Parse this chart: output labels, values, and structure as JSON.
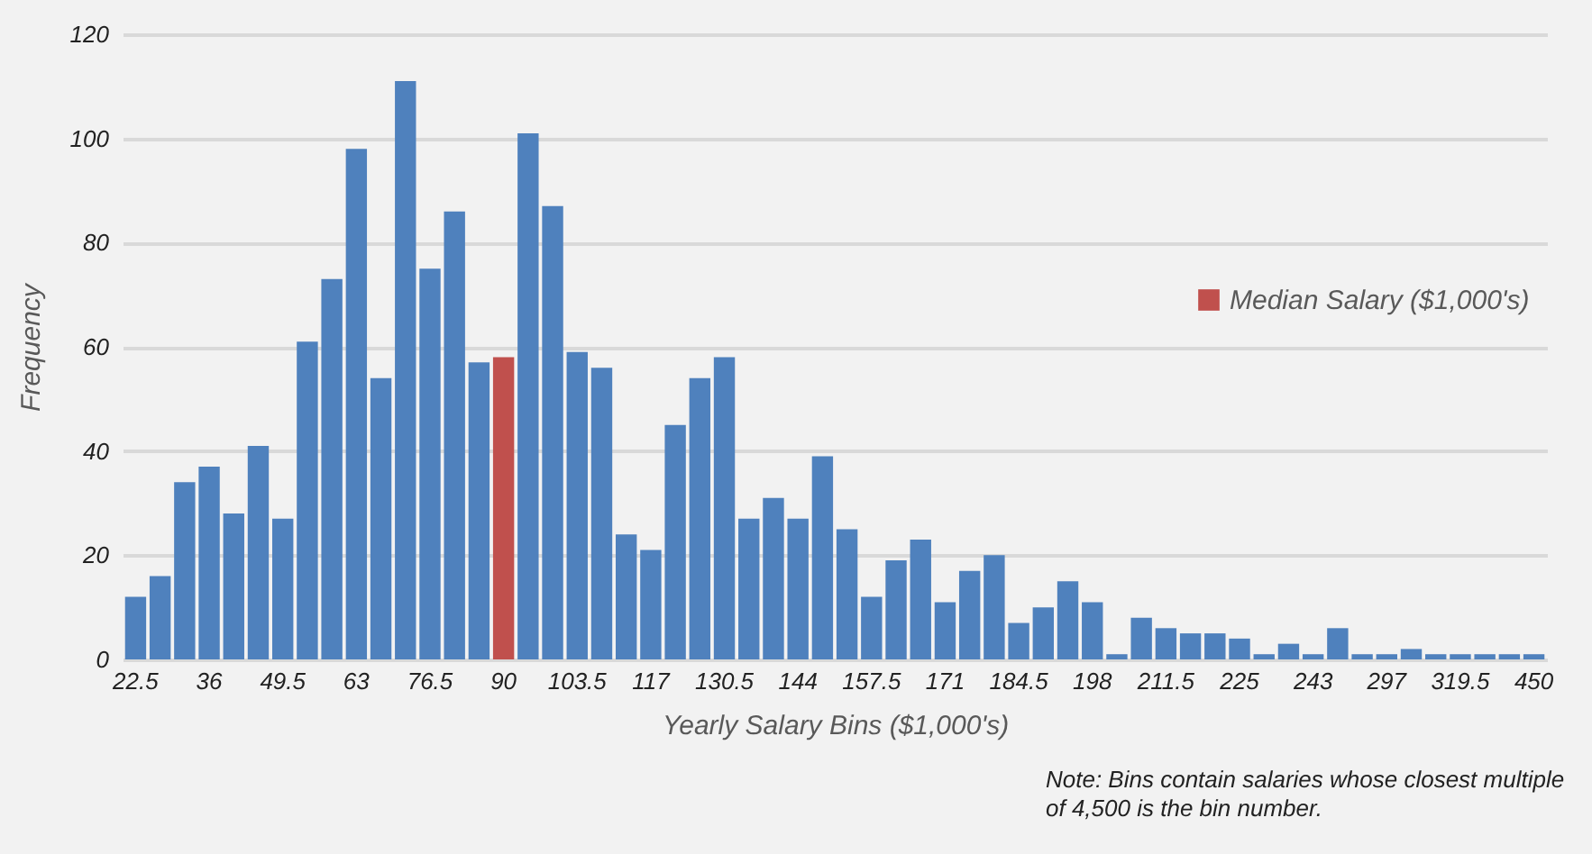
{
  "chart_data": {
    "type": "bar",
    "xlabel": "Yearly Salary Bins ($1,000's)",
    "ylabel": "Frequency",
    "categories": [
      "22.5",
      null,
      null,
      "36",
      null,
      null,
      "49.5",
      null,
      null,
      "63",
      null,
      null,
      "76.5",
      null,
      null,
      "90",
      null,
      null,
      "103.5",
      null,
      null,
      "117",
      null,
      null,
      "130.5",
      null,
      null,
      "144",
      null,
      null,
      "157.5",
      null,
      null,
      "171",
      null,
      null,
      "184.5",
      null,
      null,
      "198",
      null,
      null,
      "211.5",
      null,
      null,
      "225",
      null,
      null,
      "243",
      null,
      null,
      "297",
      null,
      null,
      "319.5",
      null,
      null,
      "450"
    ],
    "series": [
      {
        "color": "#4f81bd",
        "values": [
          12,
          16,
          34,
          37,
          28,
          41,
          27,
          61,
          73,
          98,
          54,
          111,
          75,
          86,
          57,
          null,
          101,
          87,
          59,
          56,
          24,
          21,
          45,
          54,
          58,
          27,
          31,
          27,
          39,
          25,
          12,
          19,
          23,
          11,
          17,
          20,
          7,
          10,
          15,
          11,
          1,
          8,
          6,
          5,
          5,
          4,
          1,
          3,
          1,
          6,
          1,
          1,
          2,
          1,
          1,
          1,
          1,
          1
        ]
      },
      {
        "name": "Median Salary ($1,000's)",
        "color": "#c0504d",
        "values": [
          null,
          null,
          null,
          null,
          null,
          null,
          null,
          null,
          null,
          null,
          null,
          null,
          null,
          null,
          null,
          58,
          null,
          null,
          null,
          null,
          null,
          null,
          null,
          null,
          null,
          null,
          null,
          null,
          null,
          null,
          null,
          null,
          null,
          null,
          null,
          null,
          null,
          null,
          null,
          null,
          null,
          null,
          null,
          null,
          null,
          null,
          null,
          null,
          null,
          null,
          null,
          null,
          null,
          null,
          null,
          null,
          null,
          null
        ]
      }
    ],
    "ylim": [
      0,
      120
    ],
    "yticks": [
      0,
      20,
      40,
      60,
      80,
      100,
      120
    ],
    "grid": "y",
    "legend": "right",
    "annotations": [
      "Note: Bins contain salaries whose closest multiple of 4,500 is the bin number."
    ]
  }
}
